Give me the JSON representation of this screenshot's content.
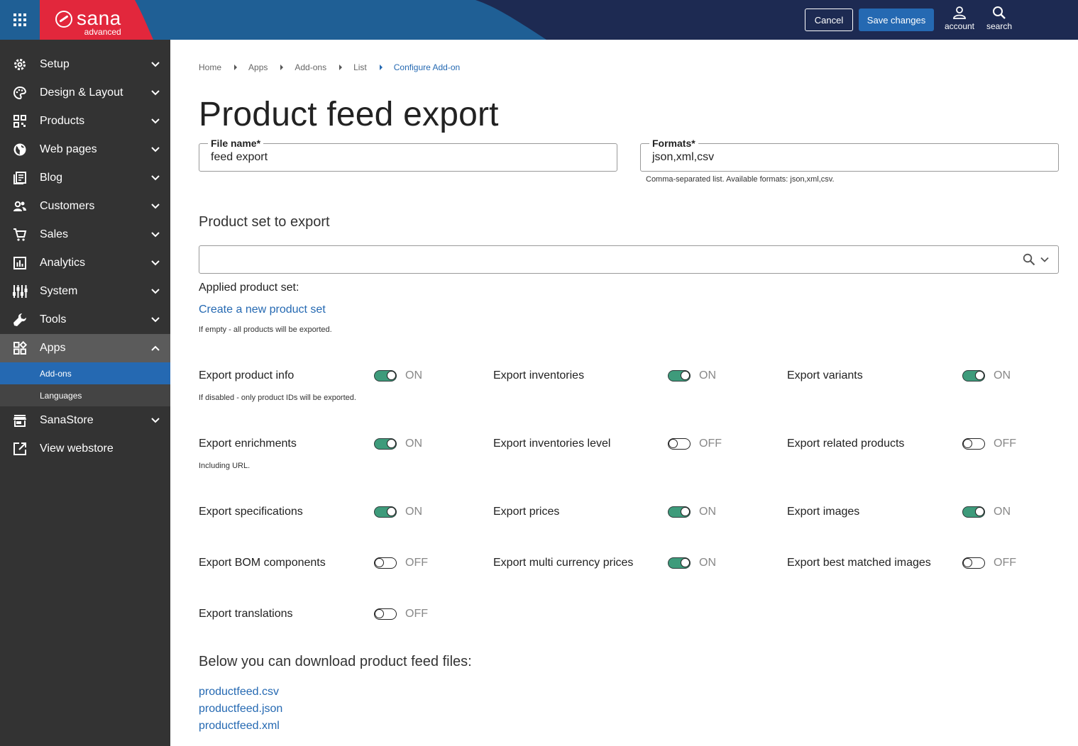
{
  "brand": {
    "name": "sana",
    "edition": "advanced"
  },
  "topbar": {
    "cancel_label": "Cancel",
    "save_label": "Save changes",
    "account_label": "account",
    "search_label": "search"
  },
  "sidebar": {
    "items": [
      {
        "label": "Setup",
        "icon": "gear-icon"
      },
      {
        "label": "Design & Layout",
        "icon": "palette-icon"
      },
      {
        "label": "Products",
        "icon": "qr-grid-icon"
      },
      {
        "label": "Web pages",
        "icon": "globe-icon"
      },
      {
        "label": "Blog",
        "icon": "newspaper-icon"
      },
      {
        "label": "Customers",
        "icon": "people-icon"
      },
      {
        "label": "Sales",
        "icon": "cart-icon"
      },
      {
        "label": "Analytics",
        "icon": "chart-icon"
      },
      {
        "label": "System",
        "icon": "sliders-icon"
      },
      {
        "label": "Tools",
        "icon": "wrench-icon"
      },
      {
        "label": "Apps",
        "icon": "widgets-icon"
      },
      {
        "label": "SanaStore",
        "icon": "store-icon"
      },
      {
        "label": "View webstore",
        "icon": "external-link-icon"
      }
    ],
    "sub_items": [
      {
        "label": "Add-ons"
      },
      {
        "label": "Languages"
      }
    ]
  },
  "breadcrumb": [
    "Home",
    "Apps",
    "Add-ons",
    "List",
    "Configure Add-on"
  ],
  "page_title": "Product feed export",
  "form": {
    "file_name": {
      "label": "File name*",
      "value": "feed export"
    },
    "formats": {
      "label": "Formats*",
      "value": "json,xml,csv",
      "hint": "Comma-separated list. Available formats: json,xml,csv."
    },
    "product_set": {
      "title": "Product set to export",
      "applied_label": "Applied product set:",
      "create_link": "Create a new product set",
      "hint": "If empty - all products will be exported."
    }
  },
  "toggles": [
    {
      "label": "Export product info",
      "state": "ON",
      "on": true,
      "hint": "If disabled - only product IDs will be exported."
    },
    {
      "label": "Export inventories",
      "state": "ON",
      "on": true
    },
    {
      "label": "Export variants",
      "state": "ON",
      "on": true
    },
    {
      "label": "Export enrichments",
      "state": "ON",
      "on": true,
      "hint": "Including URL."
    },
    {
      "label": "Export inventories level",
      "state": "OFF",
      "on": false
    },
    {
      "label": "Export related products",
      "state": "OFF",
      "on": false
    },
    {
      "label": "Export specifications",
      "state": "ON",
      "on": true
    },
    {
      "label": "Export prices",
      "state": "ON",
      "on": true
    },
    {
      "label": "Export images",
      "state": "ON",
      "on": true
    },
    {
      "label": "Export BOM components",
      "state": "OFF",
      "on": false
    },
    {
      "label": "Export multi currency prices",
      "state": "ON",
      "on": true
    },
    {
      "label": "Export best matched images",
      "state": "OFF",
      "on": false
    },
    {
      "label": "Export translations",
      "state": "OFF",
      "on": false
    }
  ],
  "downloads": {
    "title": "Below you can download product feed files:",
    "files": [
      "productfeed.csv",
      "productfeed.json",
      "productfeed.xml"
    ]
  },
  "colors": {
    "topbar": "#1d2a52",
    "brand_red": "#e2273c",
    "accent_blue": "#2569b2",
    "toggle_on": "#3e9b7b",
    "sidebar": "#333333"
  }
}
